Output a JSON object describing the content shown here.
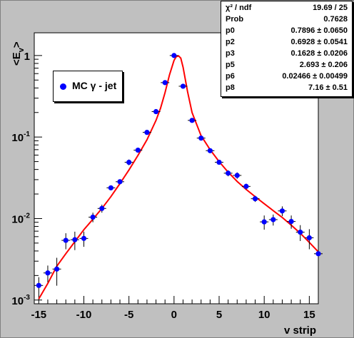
{
  "chart_data": {
    "type": "scatter",
    "xlabel": "v strip",
    "ylabel": "<E",
    "ylabel_sub": "v",
    "ylabel_close": ">",
    "xlim": [
      -15.5,
      16
    ],
    "ylim": [
      0.0009,
      1.9
    ],
    "y_scale": "log",
    "x_ticks": [
      "-15",
      "-10",
      "-5",
      "0",
      "5",
      "10",
      "15"
    ],
    "y_tick_labels": [
      {
        "base": "10",
        "exp": "-3"
      },
      {
        "base": "10",
        "exp": "-2"
      },
      {
        "base": "10",
        "exp": "-1"
      },
      {
        "base": "1",
        "exp": ""
      }
    ],
    "legend": {
      "marker_color": "#0000ff",
      "label": "MC γ - jet",
      "placement": "upper-left"
    },
    "series": [
      {
        "name": "MC γ - jet",
        "color": "#0000ff",
        "points": [
          {
            "x": -15,
            "y": 0.00151,
            "err": 0.0004
          },
          {
            "x": -14,
            "y": 0.00215,
            "err": 0.0005
          },
          {
            "x": -13,
            "y": 0.0024,
            "err": 0.0009
          },
          {
            "x": -12,
            "y": 0.0054,
            "err": 0.0012
          },
          {
            "x": -11,
            "y": 0.0055,
            "err": 0.0014
          },
          {
            "x": -10,
            "y": 0.0057,
            "err": 0.0012
          },
          {
            "x": -9,
            "y": 0.0104,
            "err": 0.0014
          },
          {
            "x": -8,
            "y": 0.0133,
            "err": 0.0015
          },
          {
            "x": -7,
            "y": 0.0238,
            "err": 0.0015
          },
          {
            "x": -6,
            "y": 0.0283,
            "err": 0.002
          },
          {
            "x": -5,
            "y": 0.049,
            "err": 0.004
          },
          {
            "x": -4,
            "y": 0.069,
            "err": 0.004
          },
          {
            "x": -3,
            "y": 0.114,
            "err": 0.006
          },
          {
            "x": -2,
            "y": 0.205,
            "err": 0.008
          },
          {
            "x": -1,
            "y": 0.465,
            "err": 0.015
          },
          {
            "x": 0,
            "y": 1.0,
            "err": 0.02
          },
          {
            "x": 1,
            "y": 0.42,
            "err": 0.015
          },
          {
            "x": 2,
            "y": 0.16,
            "err": 0.007
          },
          {
            "x": 3,
            "y": 0.097,
            "err": 0.005
          },
          {
            "x": 4,
            "y": 0.068,
            "err": 0.004
          },
          {
            "x": 5,
            "y": 0.049,
            "err": 0.003
          },
          {
            "x": 6,
            "y": 0.036,
            "err": 0.003
          },
          {
            "x": 7,
            "y": 0.0338,
            "err": 0.003
          },
          {
            "x": 8,
            "y": 0.0248,
            "err": 0.002
          },
          {
            "x": 9,
            "y": 0.0175,
            "err": 0.0015
          },
          {
            "x": 10,
            "y": 0.0091,
            "err": 0.0018
          },
          {
            "x": 11,
            "y": 0.0097,
            "err": 0.0015
          },
          {
            "x": 12,
            "y": 0.0124,
            "err": 0.0017
          },
          {
            "x": 13,
            "y": 0.0092,
            "err": 0.0017
          },
          {
            "x": 14,
            "y": 0.0068,
            "err": 0.0015
          },
          {
            "x": 15,
            "y": 0.0058,
            "err": 0.0016
          },
          {
            "x": 16,
            "y": 0.0037,
            "err": 0.0014
          }
        ]
      },
      {
        "name": "fit",
        "color": "#ff0000",
        "line": true,
        "points": [
          {
            "x": -15.0,
            "y": 0.00103
          },
          {
            "x": -14.0,
            "y": 0.0016
          },
          {
            "x": -13.0,
            "y": 0.0026
          },
          {
            "x": -12.0,
            "y": 0.0037
          },
          {
            "x": -11.0,
            "y": 0.0052
          },
          {
            "x": -10.0,
            "y": 0.0073
          },
          {
            "x": -9.0,
            "y": 0.0098
          },
          {
            "x": -8.0,
            "y": 0.0133
          },
          {
            "x": -7.0,
            "y": 0.0186
          },
          {
            "x": -6.0,
            "y": 0.0268
          },
          {
            "x": -5.0,
            "y": 0.0395
          },
          {
            "x": -4.0,
            "y": 0.0595
          },
          {
            "x": -3.0,
            "y": 0.0925
          },
          {
            "x": -2.0,
            "y": 0.16
          },
          {
            "x": -1.5,
            "y": 0.225
          },
          {
            "x": -1.0,
            "y": 0.35
          },
          {
            "x": -0.5,
            "y": 0.58
          },
          {
            "x": 0.0,
            "y": 0.87
          },
          {
            "x": 0.25,
            "y": 0.97
          },
          {
            "x": 0.5,
            "y": 0.99
          },
          {
            "x": 0.75,
            "y": 0.93
          },
          {
            "x": 1.0,
            "y": 0.72
          },
          {
            "x": 1.5,
            "y": 0.36
          },
          {
            "x": 2.0,
            "y": 0.2
          },
          {
            "x": 3.0,
            "y": 0.104
          },
          {
            "x": 4.0,
            "y": 0.07
          },
          {
            "x": 5.0,
            "y": 0.05
          },
          {
            "x": 6.0,
            "y": 0.037
          },
          {
            "x": 7.0,
            "y": 0.0285
          },
          {
            "x": 8.0,
            "y": 0.0228
          },
          {
            "x": 9.0,
            "y": 0.0185
          },
          {
            "x": 10.0,
            "y": 0.0152
          },
          {
            "x": 11.0,
            "y": 0.0125
          },
          {
            "x": 12.0,
            "y": 0.0103
          },
          {
            "x": 13.0,
            "y": 0.0083
          },
          {
            "x": 14.0,
            "y": 0.0066
          },
          {
            "x": 15.0,
            "y": 0.0051
          },
          {
            "x": 16.0,
            "y": 0.0039
          }
        ]
      }
    ],
    "stats": [
      {
        "name": "χ² / ndf",
        "value": "19.69 / 25"
      },
      {
        "name": "Prob",
        "value": "0.7628"
      },
      {
        "name": "p0",
        "value": "0.7896 ± 0.0650"
      },
      {
        "name": "p2",
        "value": "0.6928 ± 0.0541"
      },
      {
        "name": "p3",
        "value": "0.1628 ± 0.0206"
      },
      {
        "name": "p5",
        "value": "2.693 ± 0.206"
      },
      {
        "name": "p6",
        "value": "0.02466 ± 0.00499"
      },
      {
        "name": "p8",
        "value": "7.16 ± 0.51"
      }
    ]
  }
}
